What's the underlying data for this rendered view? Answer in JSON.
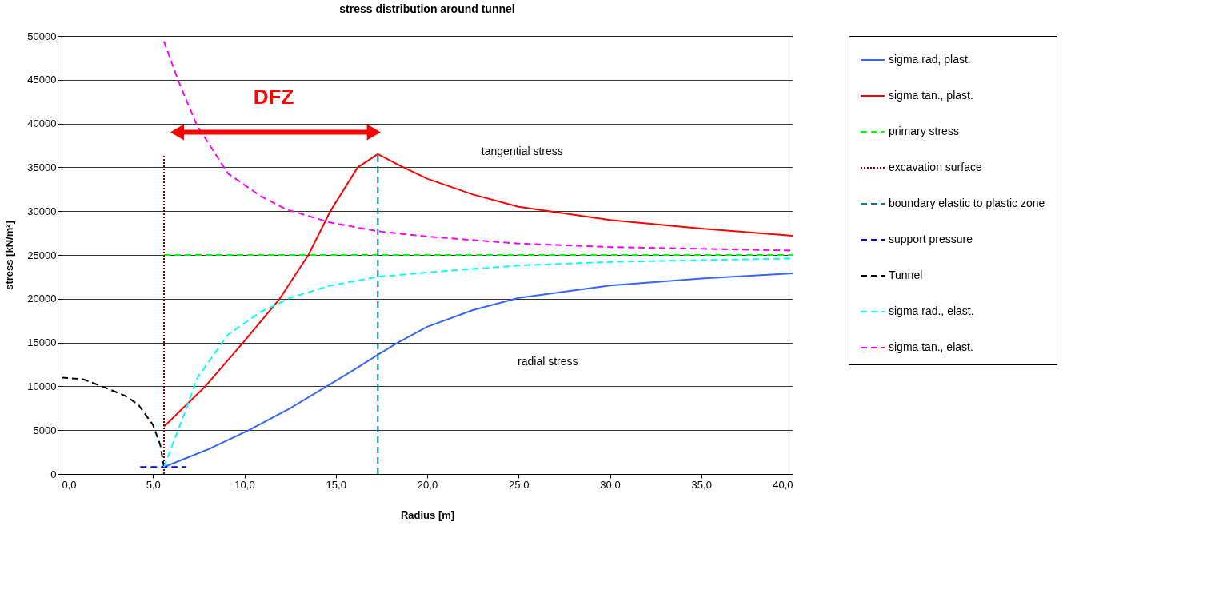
{
  "chart_data": {
    "type": "line",
    "title": "stress distribution around tunnel",
    "xlabel": "Radius [m]",
    "ylabel": "stress  [kN/m²]",
    "xlim": [
      0,
      40
    ],
    "xticks": [
      {
        "value": 0,
        "label": "0,0"
      },
      {
        "value": 5,
        "label": "5,0"
      },
      {
        "value": 10,
        "label": "10,0"
      },
      {
        "value": 15,
        "label": "15,0"
      },
      {
        "value": 20,
        "label": "20,0"
      },
      {
        "value": 25,
        "label": "25,0"
      },
      {
        "value": 30,
        "label": "30,0"
      },
      {
        "value": 35,
        "label": "35,0"
      },
      {
        "value": 40,
        "label": "40,0"
      }
    ],
    "ylim": [
      0,
      50000
    ],
    "yticks": [
      0,
      5000,
      10000,
      15000,
      20000,
      25000,
      30000,
      35000,
      40000,
      45000,
      50000
    ],
    "grid": "y",
    "legend": "right",
    "marker": "none",
    "series": [
      {
        "name": "sigma rad, plast.",
        "color": "#3366ff",
        "line_style": "solid",
        "x": [
          5.6,
          8,
          10.25,
          12.5,
          14.5,
          16,
          17.3,
          18.4,
          20,
          22.5,
          25,
          30,
          35,
          40
        ],
        "values": [
          800,
          2800,
          5000,
          7500,
          10000,
          11900,
          13600,
          15000,
          16800,
          18700,
          20100,
          21500,
          22300,
          22900
        ]
      },
      {
        "name": "sigma tan., plast.",
        "color": "#ff0000",
        "line_style": "solid",
        "x": [
          5.6,
          7.86,
          9.93,
          11.93,
          13.5,
          14.7,
          16.2,
          17.3,
          18.6,
          20,
          22.5,
          25,
          30,
          35,
          40
        ],
        "values": [
          5400,
          10000,
          15000,
          20000,
          25000,
          30000,
          35000,
          36500,
          35100,
          33700,
          31900,
          30500,
          29000,
          28000,
          27200
        ]
      },
      {
        "name": "primary stress",
        "color": "#00ff00",
        "line_style": "dashed",
        "x": [
          5.6,
          40
        ],
        "values": [
          25000,
          25000
        ]
      },
      {
        "name": "excavation surface",
        "color": "#800000",
        "line_style": "dotted",
        "x": [
          5.6,
          5.6
        ],
        "values": [
          0,
          36500
        ]
      },
      {
        "name": "boundary elastic to plastic zone",
        "color": "#008080",
        "line_style": "dashed",
        "x": [
          17.3,
          17.3
        ],
        "values": [
          0,
          36500
        ]
      },
      {
        "name": "support pressure",
        "color": "#0000ff",
        "line_style": "dashed",
        "x": [
          4.3,
          6.8
        ],
        "values": [
          800,
          800
        ]
      },
      {
        "name": "Tunnel",
        "color": "#000000",
        "line_style": "dashed",
        "x": [
          0,
          1.2,
          2.45,
          3.5,
          4.2,
          5.0,
          5.4,
          5.6
        ],
        "values": [
          11000,
          10800,
          9800,
          8900,
          7900,
          5600,
          3300,
          800
        ]
      },
      {
        "name": "sigma rad., elast.",
        "color": "#00ffff",
        "line_style": "dashed",
        "x": [
          5.6,
          6.9,
          7.4,
          9.1,
          10.9,
          12.5,
          14.7,
          17.3,
          20,
          25,
          30,
          40
        ],
        "values": [
          800,
          7900,
          10900,
          15900,
          18500,
          20100,
          21500,
          22500,
          23000,
          23800,
          24200,
          24600
        ]
      },
      {
        "name": "sigma tan., elast.",
        "color": "#ff00ff",
        "line_style": "dashed",
        "x": [
          5.6,
          6.4,
          7.4,
          9.1,
          10.9,
          12.3,
          14.7,
          17.3,
          20,
          25,
          30,
          40
        ],
        "values": [
          49400,
          44800,
          39800,
          34300,
          31700,
          30200,
          28700,
          27700,
          27100,
          26300,
          25900,
          25500
        ]
      }
    ],
    "annotations": [
      "DFZ",
      "tangential stress",
      "radial stress"
    ]
  }
}
